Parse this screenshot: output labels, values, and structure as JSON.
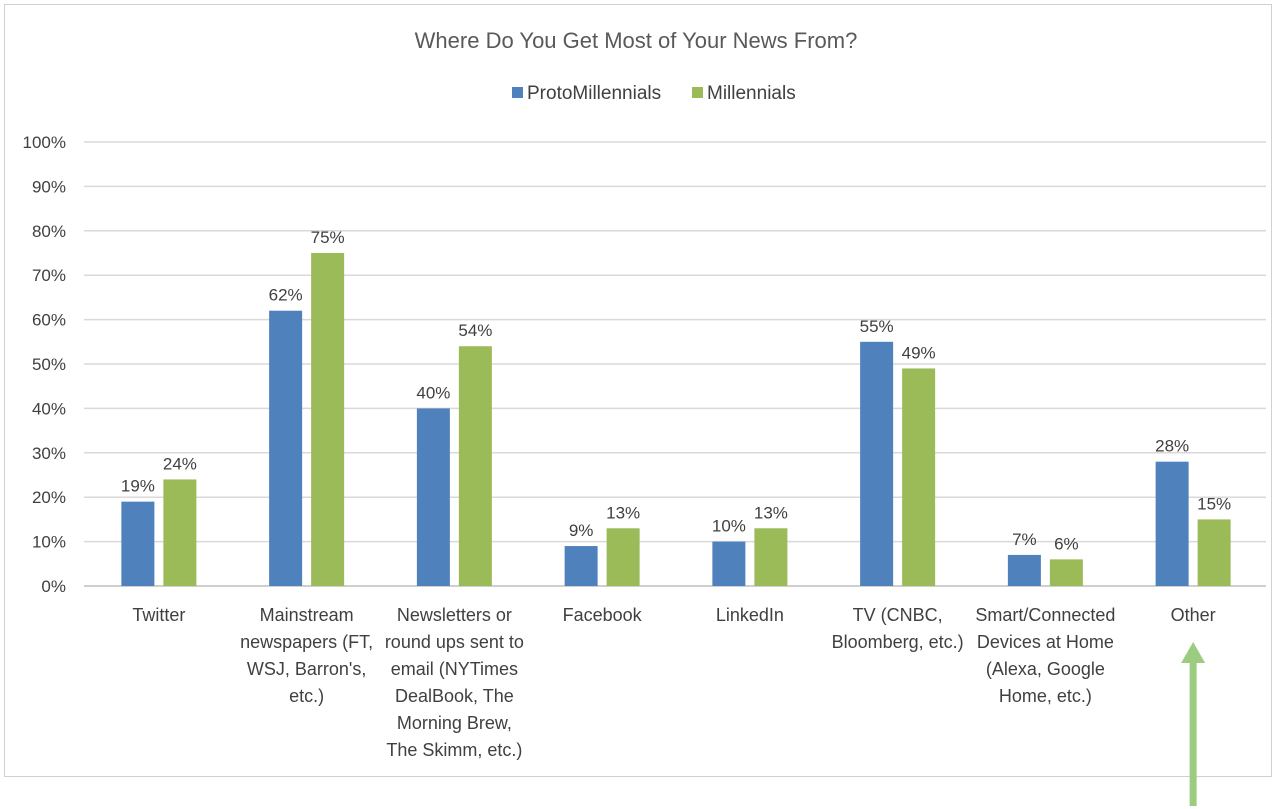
{
  "chart_data": {
    "type": "bar",
    "title": "Where Do You Get Most of Your News From?",
    "categories": [
      [
        "Twitter"
      ],
      [
        "Mainstream",
        "newspapers (FT,",
        "WSJ, Barron's,",
        "etc.)"
      ],
      [
        "Newsletters or",
        "round ups sent to",
        "email (NYTimes",
        "DealBook, The",
        "Morning Brew,",
        "The Skimm, etc.)"
      ],
      [
        "Facebook"
      ],
      [
        "LinkedIn"
      ],
      [
        "TV (CNBC,",
        "Bloomberg, etc.)"
      ],
      [
        "Smart/Connected",
        "Devices at Home",
        "(Alexa, Google",
        "Home, etc.)"
      ],
      [
        "Other"
      ]
    ],
    "series": [
      {
        "name": "ProtoMillennials",
        "color": "#4f81bd",
        "values": [
          19,
          62,
          40,
          9,
          10,
          55,
          7,
          28
        ],
        "labels": [
          "19%",
          "62%",
          "40%",
          "9%",
          "10%",
          "55%",
          "7%",
          "28%"
        ]
      },
      {
        "name": "Millennials",
        "color": "#9bbb59",
        "values": [
          24,
          75,
          54,
          13,
          13,
          49,
          6,
          15
        ],
        "labels": [
          "24%",
          "75%",
          "54%",
          "13%",
          "13%",
          "49%",
          "6%",
          "15%"
        ]
      }
    ],
    "ylim": [
      0,
      100
    ],
    "yticks": [
      "0%",
      "10%",
      "20%",
      "30%",
      "40%",
      "50%",
      "60%",
      "70%",
      "80%",
      "90%",
      "100%"
    ],
    "grid": true,
    "legend": "top",
    "annotation": {
      "type": "arrow",
      "target": "Other",
      "color": "#9bcc7f"
    }
  }
}
